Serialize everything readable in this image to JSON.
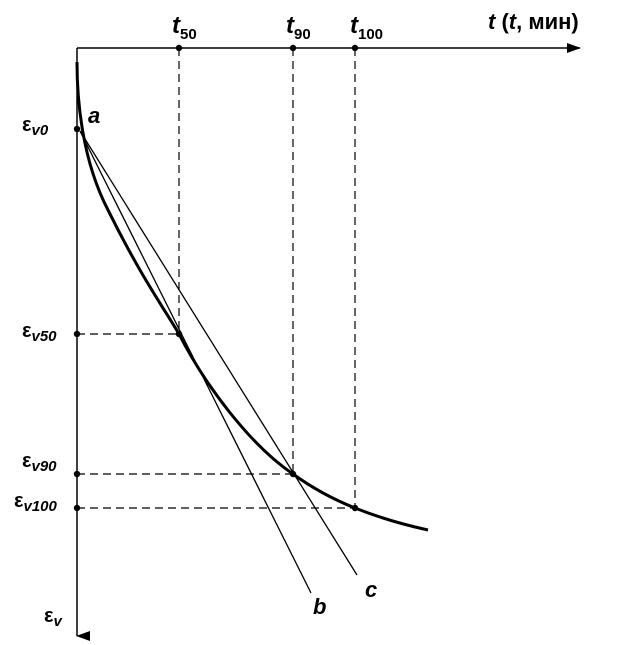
{
  "x_axis": {
    "label_main": "t",
    "label_paren_open": " (",
    "label_paren_var": "t",
    "label_paren_rest": ", мин)"
  },
  "y_axis": {
    "label_main": "ε",
    "label_sub": "v"
  },
  "time_marks": [
    {
      "main": "t",
      "sub": "50"
    },
    {
      "main": "t",
      "sub": "90"
    },
    {
      "main": "t",
      "sub": "100"
    }
  ],
  "strain_marks": [
    {
      "main": "ε",
      "sub": "v0"
    },
    {
      "main": "ε",
      "sub": "v50"
    },
    {
      "main": "ε",
      "sub": "v90"
    },
    {
      "main": "ε",
      "sub": "v100"
    }
  ],
  "curve_labels": {
    "a": "a",
    "b": "b",
    "c": "c"
  },
  "colors": {
    "ink": "#000000",
    "background": "#ffffff"
  }
}
